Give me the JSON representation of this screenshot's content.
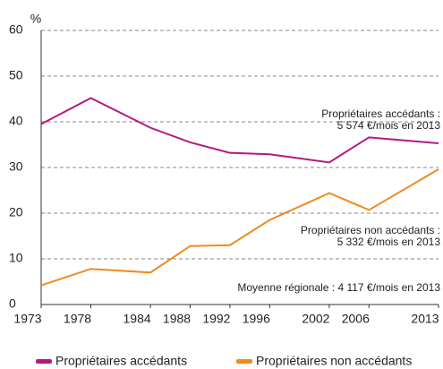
{
  "chart_data": {
    "type": "line",
    "y_unit_label": "%",
    "x": [
      1973,
      1978,
      1984,
      1988,
      1992,
      1996,
      2002,
      2006,
      2013
    ],
    "xlim": [
      1973,
      2013
    ],
    "xticks": [
      1973,
      1978,
      1984,
      1988,
      1992,
      1996,
      2002,
      2006,
      2013
    ],
    "ylim": [
      0,
      60
    ],
    "yticks": [
      0,
      10,
      20,
      30,
      40,
      50,
      60
    ],
    "grid": true,
    "legend": "bottom",
    "series": [
      {
        "name": "Propriétaires accédants",
        "color": "#b5197f",
        "values": [
          39.5,
          45.2,
          38.7,
          35.5,
          33.2,
          32.9,
          31.1,
          36.6,
          35.3
        ]
      },
      {
        "name": "Propriétaires non accédants",
        "color": "#f08a1c",
        "values": [
          4.2,
          7.8,
          7.0,
          12.8,
          13.0,
          18.5,
          24.4,
          20.7,
          29.6
        ]
      }
    ],
    "annotations": [
      [
        "Propriétaires accédants :",
        "5 574 €/mois en 2013"
      ],
      [
        "Propriétaires non accédants :",
        "5 332 €/mois en 2013"
      ],
      [
        "Moyenne régionale : 4 117 €/mois en 2013"
      ]
    ]
  }
}
